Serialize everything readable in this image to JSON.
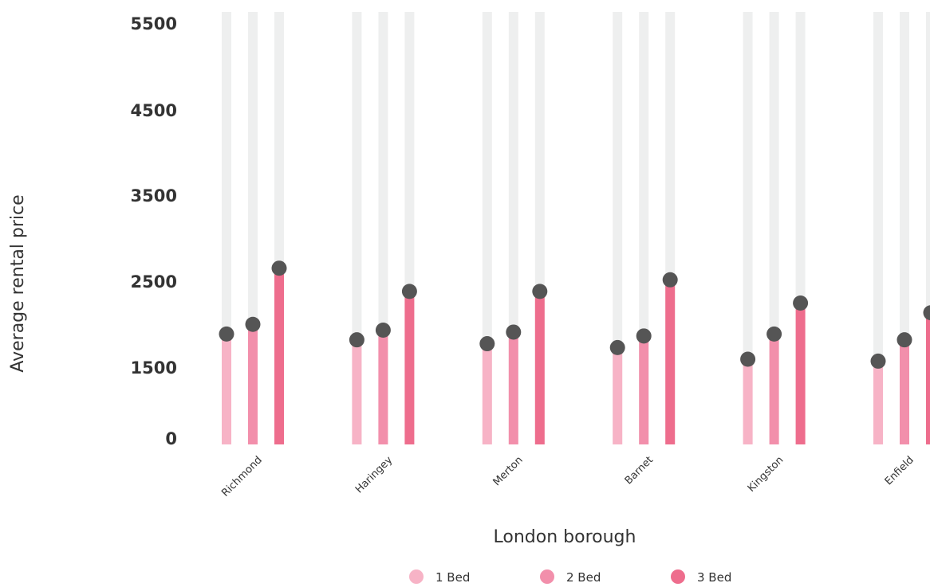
{
  "chart_data": {
    "type": "lollipop",
    "xlabel": "London borough",
    "ylabel": "Average rental price",
    "y_ticks": [
      0,
      1500,
      2500,
      3500,
      4500,
      5500
    ],
    "ylim": [
      0,
      5500
    ],
    "categories": [
      "Richmond",
      "Haringey",
      "Merton",
      "Barnet",
      "Kingston",
      "Enfield"
    ],
    "series": [
      {
        "name": "1 Bed",
        "color": "#f7b3c6",
        "values": [
          1425,
          1350,
          1300,
          1250,
          1100,
          1075
        ]
      },
      {
        "name": "2 Bed",
        "color": "#f28fab",
        "values": [
          1550,
          1475,
          1450,
          1400,
          1425,
          1350
        ]
      },
      {
        "name": "3 Bed",
        "color": "#ee6d8d",
        "values": [
          2275,
          1975,
          1975,
          2125,
          1825,
          1700
        ]
      }
    ],
    "grid": false,
    "legend_position": "bottom",
    "marker_color": "#555555",
    "track_color": "#eeefef"
  }
}
